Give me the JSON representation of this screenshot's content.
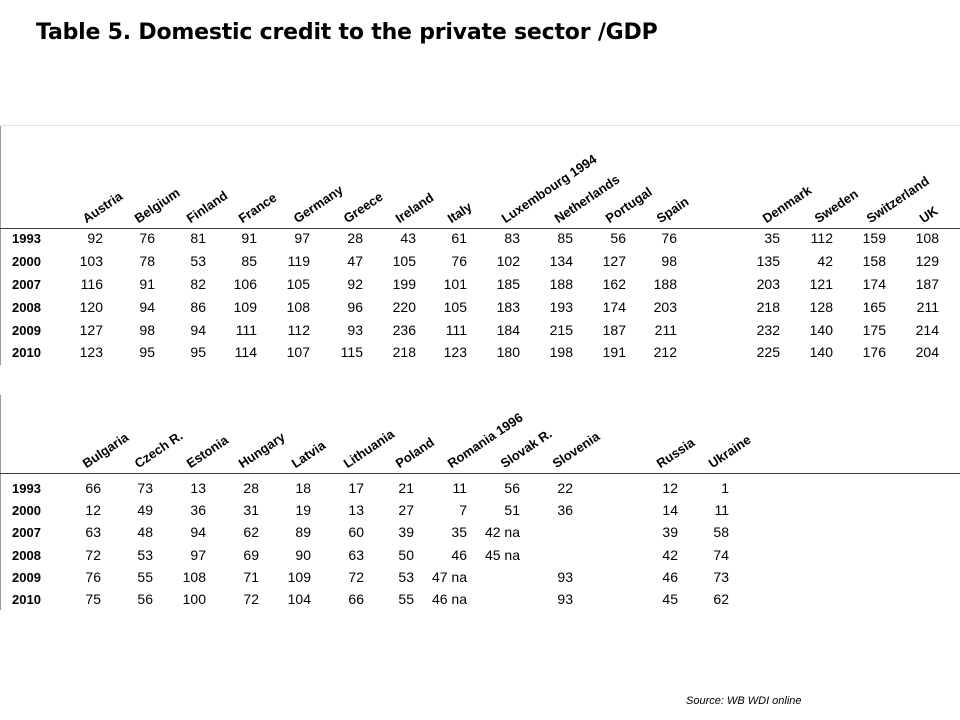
{
  "title": "Table 5. Domestic credit to the private sector /GDP",
  "source": "Source: WB WDI online",
  "table1": {
    "columns": [
      "Austria",
      "Belgium",
      "Finland",
      "France",
      "Germany",
      "Greece",
      "Ireland",
      "Italy",
      "Luxembourg 1994",
      "Netherlands",
      "Portugal",
      "Spain",
      "Denmark",
      "Sweden",
      "Switzerland",
      "UK"
    ],
    "rows": [
      {
        "year": "1993",
        "values": [
          "92",
          "76",
          "81",
          "91",
          "97",
          "28",
          "43",
          "61",
          "83",
          "85",
          "56",
          "76",
          "35",
          "112",
          "159",
          "108"
        ]
      },
      {
        "year": "2000",
        "values": [
          "103",
          "78",
          "53",
          "85",
          "119",
          "47",
          "105",
          "76",
          "102",
          "134",
          "127",
          "98",
          "135",
          "42",
          "158",
          "129"
        ]
      },
      {
        "year": "2007",
        "values": [
          "116",
          "91",
          "82",
          "106",
          "105",
          "92",
          "199",
          "101",
          "185",
          "188",
          "162",
          "188",
          "203",
          "121",
          "174",
          "187"
        ]
      },
      {
        "year": "2008",
        "values": [
          "120",
          "94",
          "86",
          "109",
          "108",
          "96",
          "220",
          "105",
          "183",
          "193",
          "174",
          "203",
          "218",
          "128",
          "165",
          "211"
        ]
      },
      {
        "year": "2009",
        "values": [
          "127",
          "98",
          "94",
          "111",
          "112",
          "93",
          "236",
          "111",
          "184",
          "215",
          "187",
          "211",
          "232",
          "140",
          "175",
          "214"
        ]
      },
      {
        "year": "2010",
        "values": [
          "123",
          "95",
          "95",
          "114",
          "107",
          "115",
          "218",
          "123",
          "180",
          "198",
          "191",
          "212",
          "225",
          "140",
          "176",
          "204"
        ]
      }
    ]
  },
  "table2": {
    "columns": [
      "Bulgaria",
      "Czech R.",
      "Estonia",
      "Hungary",
      "Latvia",
      "Lithuania",
      "Poland",
      "Romania 1996",
      "Slovak R.",
      "Slovenia",
      "Russia",
      "Ukraine"
    ],
    "rows": [
      {
        "year": "1993",
        "values": [
          "66",
          "73",
          "13",
          "28",
          "18",
          "17",
          "21",
          "11",
          "56",
          "22",
          "12",
          "1"
        ]
      },
      {
        "year": "2000",
        "values": [
          "12",
          "49",
          "36",
          "31",
          "19",
          "13",
          "27",
          "7",
          "51",
          "36",
          "14",
          "11"
        ]
      },
      {
        "year": "2007",
        "values": [
          "63",
          "48",
          "94",
          "62",
          "89",
          "60",
          "39",
          "35",
          "42 na",
          "",
          "39",
          "58"
        ]
      },
      {
        "year": "2008",
        "values": [
          "72",
          "53",
          "97",
          "69",
          "90",
          "63",
          "50",
          "46",
          "45 na",
          "",
          "42",
          "74"
        ]
      },
      {
        "year": "2009",
        "values": [
          "76",
          "55",
          "108",
          "71",
          "109",
          "72",
          "53",
          "47 na",
          "",
          "93",
          "46",
          "73"
        ]
      },
      {
        "year": "2010",
        "values": [
          "75",
          "56",
          "100",
          "72",
          "104",
          "66",
          "55",
          "46 na",
          "",
          "93",
          "45",
          "62"
        ]
      }
    ]
  }
}
